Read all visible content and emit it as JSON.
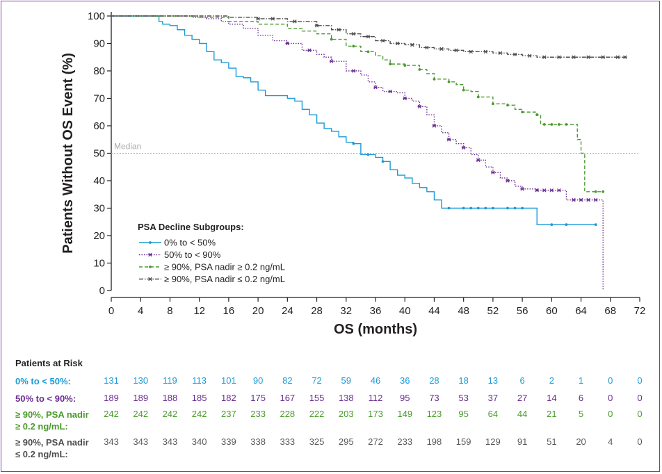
{
  "chart_data": {
    "type": "line",
    "subtype": "kaplan-meier",
    "xlabel": "OS (months)",
    "ylabel": "Patients Without OS Event (%)",
    "xlim": [
      0,
      72
    ],
    "ylim": [
      0,
      100
    ],
    "xticks": [
      0,
      4,
      8,
      12,
      16,
      20,
      24,
      28,
      32,
      36,
      40,
      44,
      48,
      52,
      56,
      60,
      64,
      68,
      72
    ],
    "yticks": [
      0,
      10,
      20,
      30,
      40,
      50,
      60,
      70,
      80,
      90,
      100
    ],
    "reference_line": {
      "y": 50,
      "label": "Median"
    },
    "legend": {
      "title": "PSA Decline Subgroups:",
      "position": "lower-left",
      "entries": [
        "0% to < 50%",
        "50% to < 90%",
        "≥ 90%, PSA nadir ≥ 0.2 ng/mL",
        "≥ 90%, PSA nadir ≤ 0.2 ng/mL"
      ]
    },
    "series": [
      {
        "name": "0% to < 50%",
        "color": "#1a9bd7",
        "dash": "solid",
        "marker": "dot",
        "points": [
          [
            0,
            100
          ],
          [
            6,
            100
          ],
          [
            6.5,
            98
          ],
          [
            7,
            97
          ],
          [
            8,
            96.5
          ],
          [
            9,
            95
          ],
          [
            10,
            93
          ],
          [
            11,
            91.5
          ],
          [
            12,
            90
          ],
          [
            13,
            87
          ],
          [
            14,
            84
          ],
          [
            15,
            83
          ],
          [
            16,
            81
          ],
          [
            17,
            78
          ],
          [
            18,
            77.5
          ],
          [
            19,
            76
          ],
          [
            20,
            73
          ],
          [
            21,
            71
          ],
          [
            24,
            70
          ],
          [
            25,
            69
          ],
          [
            26,
            66
          ],
          [
            27,
            64
          ],
          [
            28,
            61
          ],
          [
            29,
            59
          ],
          [
            30,
            58
          ],
          [
            31,
            56
          ],
          [
            32,
            54
          ],
          [
            33,
            53.5
          ],
          [
            34,
            49.5
          ],
          [
            36,
            48.5
          ],
          [
            37,
            47
          ],
          [
            38,
            44
          ],
          [
            39,
            42
          ],
          [
            40,
            41
          ],
          [
            41,
            39
          ],
          [
            42,
            37.5
          ],
          [
            43,
            36
          ],
          [
            44,
            33
          ],
          [
            45,
            30
          ],
          [
            50,
            30
          ],
          [
            58,
            30
          ],
          [
            58,
            24
          ],
          [
            66,
            24
          ]
        ],
        "censor_x": [
          33,
          35,
          37,
          46,
          48,
          49,
          50,
          51,
          52,
          54,
          55,
          56,
          60,
          62,
          66
        ]
      },
      {
        "name": "50% to < 90%",
        "color": "#6b2c91",
        "dash": "dotted",
        "marker": "cross",
        "points": [
          [
            0,
            100
          ],
          [
            10,
            100
          ],
          [
            11,
            99.5
          ],
          [
            13,
            99
          ],
          [
            15,
            98
          ],
          [
            16,
            97
          ],
          [
            18,
            95.5
          ],
          [
            20,
            93
          ],
          [
            22,
            91
          ],
          [
            24,
            90
          ],
          [
            26,
            87.5
          ],
          [
            28,
            86
          ],
          [
            29,
            85
          ],
          [
            30,
            83.5
          ],
          [
            32,
            80
          ],
          [
            34,
            78.5
          ],
          [
            35,
            76
          ],
          [
            36,
            74
          ],
          [
            37,
            72.5
          ],
          [
            39,
            72
          ],
          [
            40,
            70
          ],
          [
            41,
            69
          ],
          [
            42,
            67
          ],
          [
            43,
            64
          ],
          [
            44,
            60
          ],
          [
            45,
            57.5
          ],
          [
            46,
            55
          ],
          [
            47,
            53.5
          ],
          [
            48,
            52
          ],
          [
            49,
            49.5
          ],
          [
            50,
            47.5
          ],
          [
            51,
            45
          ],
          [
            52,
            43
          ],
          [
            53,
            41
          ],
          [
            54,
            40
          ],
          [
            55,
            38
          ],
          [
            56,
            37
          ],
          [
            58,
            36.5
          ],
          [
            62,
            36.5
          ],
          [
            62,
            33
          ],
          [
            67,
            33
          ],
          [
            67,
            0
          ]
        ],
        "censor_x": [
          24,
          27,
          30,
          33,
          36,
          38,
          40,
          42,
          44,
          46,
          48,
          50,
          52,
          54,
          56,
          58,
          59,
          60,
          61,
          63,
          64,
          65,
          66
        ]
      },
      {
        "name": "≥ 90%, PSA nadir ≥ 0.2 ng/mL",
        "color": "#4a9a2d",
        "dash": "dashed",
        "marker": "dot",
        "points": [
          [
            0,
            100
          ],
          [
            10,
            100
          ],
          [
            12,
            99.5
          ],
          [
            16,
            98
          ],
          [
            20,
            97
          ],
          [
            24,
            95.5
          ],
          [
            26,
            94.5
          ],
          [
            28,
            93.5
          ],
          [
            30,
            91.5
          ],
          [
            32,
            89
          ],
          [
            34,
            87
          ],
          [
            36,
            85.5
          ],
          [
            37,
            84
          ],
          [
            38,
            82.5
          ],
          [
            40,
            82
          ],
          [
            42,
            80.5
          ],
          [
            43,
            79
          ],
          [
            44,
            77
          ],
          [
            46,
            76
          ],
          [
            47,
            75
          ],
          [
            48,
            73
          ],
          [
            49,
            72.5
          ],
          [
            50,
            70.5
          ],
          [
            52,
            68
          ],
          [
            54,
            67.5
          ],
          [
            55,
            66
          ],
          [
            56,
            65
          ],
          [
            58,
            64
          ],
          [
            58.5,
            60.5
          ],
          [
            63,
            60.5
          ],
          [
            63.5,
            55
          ],
          [
            64,
            50
          ],
          [
            64.5,
            36
          ],
          [
            67,
            36
          ]
        ],
        "censor_x": [
          30,
          33,
          35,
          38,
          40,
          42,
          44,
          46,
          48,
          50,
          52,
          54,
          56,
          58,
          59,
          60,
          61,
          62,
          66,
          67
        ]
      },
      {
        "name": "≥ 90%, PSA nadir ≤ 0.2 ng/mL",
        "color": "#4d4d4f",
        "dash": "dashdot",
        "marker": "cross",
        "points": [
          [
            0,
            100
          ],
          [
            14,
            100
          ],
          [
            16,
            99.5
          ],
          [
            20,
            99
          ],
          [
            24,
            98
          ],
          [
            28,
            96.5
          ],
          [
            30,
            95
          ],
          [
            32,
            93.5
          ],
          [
            34,
            92.5
          ],
          [
            36,
            91
          ],
          [
            38,
            90
          ],
          [
            40,
            89.5
          ],
          [
            42,
            88.5
          ],
          [
            44,
            88
          ],
          [
            46,
            87.5
          ],
          [
            48,
            87
          ],
          [
            50,
            87
          ],
          [
            52,
            86.5
          ],
          [
            54,
            86
          ],
          [
            56,
            85.5
          ],
          [
            58,
            85
          ],
          [
            70,
            85
          ]
        ],
        "censor_x": [
          20,
          22,
          25,
          28,
          31,
          33,
          35,
          37,
          39,
          41,
          43,
          45,
          47,
          49,
          51,
          53,
          55,
          57,
          59,
          61,
          63,
          65,
          67,
          69,
          70
        ]
      }
    ],
    "risk_table": {
      "title": "Patients at Risk",
      "timepoints": [
        0,
        4,
        8,
        12,
        16,
        20,
        24,
        28,
        32,
        36,
        40,
        44,
        48,
        52,
        56,
        60,
        64,
        68,
        72
      ],
      "rows": [
        {
          "label": "0% to < 50%:",
          "label_lines": [
            "0% to < 50%:"
          ],
          "color": "#1a9bd7",
          "values": [
            "131",
            "130",
            "119",
            "113",
            "101",
            "90",
            "82",
            "72",
            "59",
            "46",
            "36",
            "28",
            "18",
            "13",
            "6",
            "2",
            "1",
            "0",
            "0"
          ]
        },
        {
          "label": "50% to < 90%:",
          "label_lines": [
            "50% to < 90%:"
          ],
          "color": "#6b2c91",
          "values": [
            "189",
            "189",
            "188",
            "185",
            "182",
            "175",
            "167",
            "155",
            "138",
            "112",
            "95",
            "73",
            "53",
            "37",
            "27",
            "14",
            "6",
            "0",
            "0"
          ]
        },
        {
          "label": "≥ 90%, PSA nadir ≥ 0.2 ng/mL:",
          "label_lines": [
            "≥ 90%, PSA nadir",
            "≥ 0.2 ng/mL:"
          ],
          "color": "#4a9a2d",
          "values": [
            "242",
            "242",
            "242",
            "242",
            "237",
            "233",
            "228",
            "222",
            "203",
            "173",
            "149",
            "123",
            "95",
            "64",
            "44",
            "21",
            "5",
            "0",
            "0"
          ]
        },
        {
          "label": "≥ 90%, PSA nadir ≤ 0.2 ng/mL:",
          "label_lines": [
            "≥ 90%, PSA nadir",
            "≤ 0.2 ng/mL:"
          ],
          "color": "#4d4d4f",
          "values": [
            "343",
            "343",
            "343",
            "340",
            "339",
            "338",
            "333",
            "325",
            "295",
            "272",
            "233",
            "198",
            "159",
            "129",
            "91",
            "51",
            "20",
            "4",
            "0"
          ]
        }
      ]
    }
  }
}
